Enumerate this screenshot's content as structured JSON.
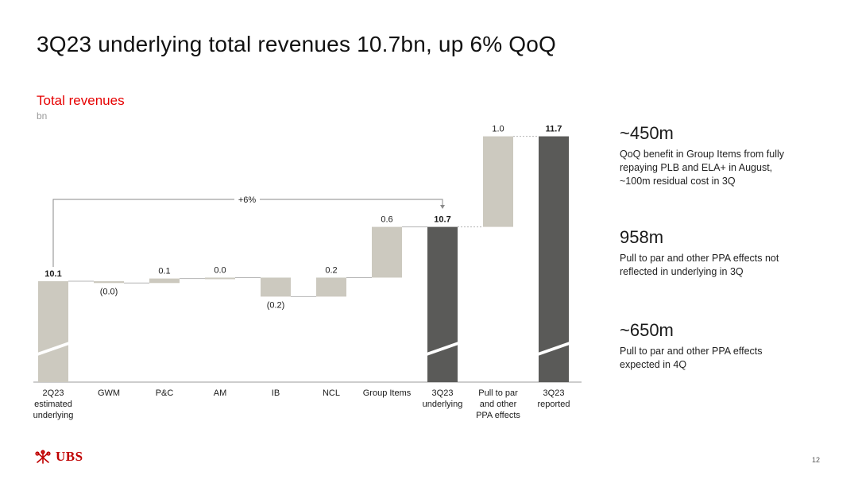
{
  "page": {
    "title": "3Q23 underlying total revenues 10.7bn, up 6% QoQ",
    "page_number": "12",
    "logo_text": "UBS"
  },
  "chart_data": {
    "type": "bar",
    "subtype": "waterfall",
    "title": "Total revenues",
    "unit": "bn",
    "categories": [
      "2Q23 estimated underlying",
      "GWM",
      "P&C",
      "AM",
      "IB",
      "NCL",
      "Group Items",
      "3Q23 underlying",
      "Pull to par and other PPA effects",
      "3Q23 reported"
    ],
    "category_lines": [
      [
        "2Q23",
        "estimated",
        "underlying"
      ],
      [
        "GWM"
      ],
      [
        "P&C"
      ],
      [
        "AM"
      ],
      [
        "IB"
      ],
      [
        "NCL"
      ],
      [
        "Group Items"
      ],
      [
        "3Q23",
        "underlying"
      ],
      [
        "Pull to par",
        "and other",
        "PPA effects"
      ],
      [
        "3Q23",
        "reported"
      ]
    ],
    "bars": [
      {
        "kind": "total",
        "start": 0,
        "end": 10.1,
        "label": "10.1",
        "label_bold": true,
        "color": "#ccc9bf",
        "broken_axis": true
      },
      {
        "kind": "delta",
        "start": 10.1,
        "end": 10.08,
        "label": "(0.0)",
        "color": "#ccc9bf"
      },
      {
        "kind": "delta",
        "start": 10.08,
        "end": 10.13,
        "label": "0.1",
        "color": "#ccc9bf"
      },
      {
        "kind": "delta",
        "start": 10.13,
        "end": 10.14,
        "label": "0.0",
        "color": "#ccc9bf"
      },
      {
        "kind": "delta",
        "start": 10.14,
        "end": 9.93,
        "label": "(0.2)",
        "color": "#ccc9bf"
      },
      {
        "kind": "delta",
        "start": 9.93,
        "end": 10.14,
        "label": "0.2",
        "color": "#ccc9bf"
      },
      {
        "kind": "delta",
        "start": 10.14,
        "end": 10.7,
        "label": "0.6",
        "color": "#ccc9bf"
      },
      {
        "kind": "total",
        "start": 0,
        "end": 10.7,
        "label": "10.7",
        "label_bold": true,
        "color": "#5a5a58",
        "broken_axis": true
      },
      {
        "kind": "delta",
        "start": 10.7,
        "end": 11.7,
        "label": "1.0",
        "color": "#ccc9bf"
      },
      {
        "kind": "total",
        "start": 0,
        "end": 11.7,
        "label": "11.7",
        "label_bold": true,
        "color": "#5a5a58",
        "broken_axis": true
      }
    ],
    "annotation": {
      "label": "+6%",
      "from_index": 0,
      "to_index": 7
    },
    "axis_note": "y-axis broken; bars not to scale below break"
  },
  "notes": [
    {
      "headline": "~450m",
      "text": [
        "QoQ benefit in Group Items from fully",
        "repaying PLB and ELA+ in August,",
        "~100m residual cost in 3Q"
      ]
    },
    {
      "headline": "958m",
      "text": [
        "Pull to par and other PPA effects not",
        "reflected in underlying in 3Q"
      ]
    },
    {
      "headline": "~650m",
      "text": [
        "Pull to par and other PPA effects",
        "expected in 4Q"
      ]
    }
  ],
  "colors": {
    "accent": "#e60000",
    "light_bar": "#ccc9bf",
    "dark_bar": "#5a5a58",
    "logo": "#c00000"
  }
}
